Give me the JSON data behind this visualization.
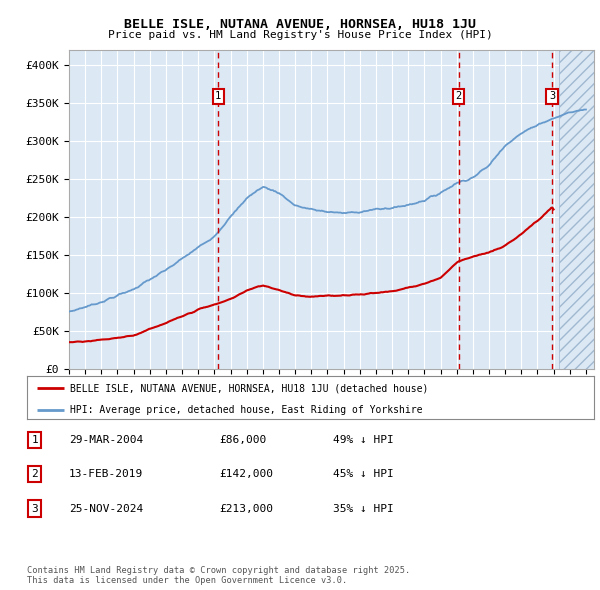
{
  "title": "BELLE ISLE, NUTANA AVENUE, HORNSEA, HU18 1JU",
  "subtitle": "Price paid vs. HM Land Registry's House Price Index (HPI)",
  "plot_bg_color": "#dce9f5",
  "ylim": [
    0,
    420000
  ],
  "yticks": [
    0,
    50000,
    100000,
    150000,
    200000,
    250000,
    300000,
    350000,
    400000
  ],
  "ytick_labels": [
    "£0",
    "£50K",
    "£100K",
    "£150K",
    "£200K",
    "£250K",
    "£300K",
    "£350K",
    "£400K"
  ],
  "xlim_start": 1995.0,
  "xlim_end": 2027.5,
  "xtick_years": [
    1995,
    1996,
    1997,
    1998,
    1999,
    2000,
    2001,
    2002,
    2003,
    2004,
    2005,
    2006,
    2007,
    2008,
    2009,
    2010,
    2011,
    2012,
    2013,
    2014,
    2015,
    2016,
    2017,
    2018,
    2019,
    2020,
    2021,
    2022,
    2023,
    2024,
    2025,
    2026,
    2027
  ],
  "sale_dates": [
    2004.24,
    2019.12,
    2024.9
  ],
  "sale_labels": [
    "1",
    "2",
    "3"
  ],
  "legend_label_red": "BELLE ISLE, NUTANA AVENUE, HORNSEA, HU18 1JU (detached house)",
  "legend_label_blue": "HPI: Average price, detached house, East Riding of Yorkshire",
  "table_data": [
    [
      "1",
      "29-MAR-2004",
      "£86,000",
      "49% ↓ HPI"
    ],
    [
      "2",
      "13-FEB-2019",
      "£142,000",
      "45% ↓ HPI"
    ],
    [
      "3",
      "25-NOV-2024",
      "£213,000",
      "35% ↓ HPI"
    ]
  ],
  "footer": "Contains HM Land Registry data © Crown copyright and database right 2025.\nThis data is licensed under the Open Government Licence v3.0.",
  "red_line_color": "#cc0000",
  "blue_line_color": "#6699cc",
  "vline_color": "#cc0000",
  "hatch_start": 2025.33
}
